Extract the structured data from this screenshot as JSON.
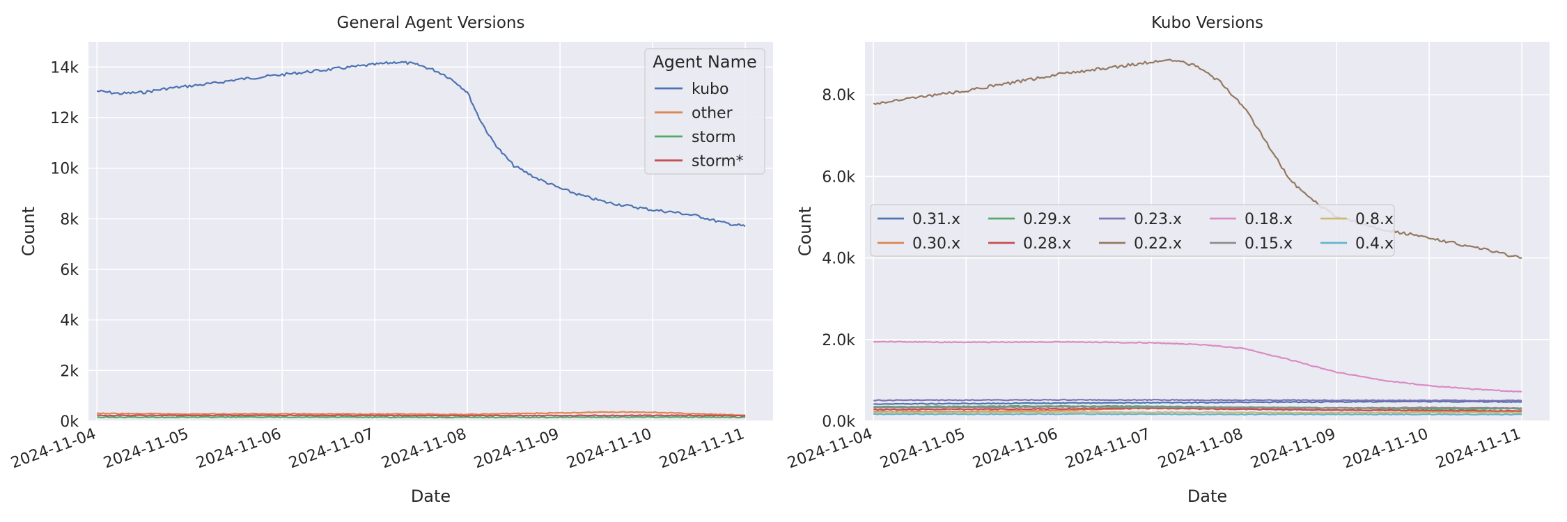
{
  "chart_data": [
    {
      "type": "line",
      "title": "General Agent Versions",
      "xlabel": "Date",
      "ylabel": "Count",
      "ylim": [
        0,
        15000
      ],
      "xlim": [
        "2024-11-03T21:48",
        "2024-11-11T07:12"
      ],
      "grid": true,
      "background": "#eaeaf2",
      "yticks": [
        0,
        2000,
        4000,
        6000,
        8000,
        10000,
        12000,
        14000
      ],
      "yticklabels": [
        "0k",
        "2k",
        "4k",
        "6k",
        "8k",
        "10k",
        "12k",
        "14k"
      ],
      "xticks": [
        "2024-11-04",
        "2024-11-05",
        "2024-11-06",
        "2024-11-07",
        "2024-11-08",
        "2024-11-09",
        "2024-11-10",
        "2024-11-11"
      ],
      "legend": {
        "title": "Agent Name",
        "placement": "top-right",
        "columns": 1
      },
      "series": [
        {
          "name": "kubo",
          "color": "#4c72b0",
          "x": [
            "2024-11-04",
            "2024-11-04T06:00",
            "2024-11-04T12:00",
            "2024-11-04T18:00",
            "2024-11-05",
            "2024-11-05T06:00",
            "2024-11-05T12:00",
            "2024-11-05T18:00",
            "2024-11-06",
            "2024-11-06T06:00",
            "2024-11-06T12:00",
            "2024-11-06T18:00",
            "2024-11-07",
            "2024-11-07T03:00",
            "2024-11-07T06:00",
            "2024-11-07T09:00",
            "2024-11-07T12:00",
            "2024-11-07T15:00",
            "2024-11-07T18:00",
            "2024-11-07T21:00",
            "2024-11-08",
            "2024-11-08T03:00",
            "2024-11-08T06:00",
            "2024-11-08T09:00",
            "2024-11-08T12:00",
            "2024-11-08T18:00",
            "2024-11-09",
            "2024-11-09T06:00",
            "2024-11-09T12:00",
            "2024-11-09T18:00",
            "2024-11-10",
            "2024-11-10T06:00",
            "2024-11-10T12:00",
            "2024-11-10T18:00",
            "2024-11-11"
          ],
          "y": [
            13050,
            12950,
            13000,
            13150,
            13250,
            13350,
            13500,
            13600,
            13700,
            13800,
            13900,
            14000,
            14100,
            14150,
            14200,
            14150,
            14050,
            13900,
            13700,
            13400,
            13000,
            12000,
            11200,
            10600,
            10100,
            9600,
            9200,
            8900,
            8650,
            8500,
            8350,
            8250,
            8100,
            7850,
            7700
          ]
        },
        {
          "name": "other",
          "color": "#dd8452",
          "x": [
            "2024-11-04",
            "2024-11-05",
            "2024-11-06",
            "2024-11-07",
            "2024-11-08",
            "2024-11-08T12:00",
            "2024-11-09",
            "2024-11-09T12:00",
            "2024-11-10",
            "2024-11-10T12:00",
            "2024-11-11"
          ],
          "y": [
            300,
            280,
            290,
            280,
            260,
            300,
            320,
            360,
            350,
            280,
            230
          ]
        },
        {
          "name": "storm",
          "color": "#55a868",
          "x": [
            "2024-11-04",
            "2024-11-05",
            "2024-11-06",
            "2024-11-07",
            "2024-11-08",
            "2024-11-09",
            "2024-11-10",
            "2024-11-11"
          ],
          "y": [
            150,
            155,
            160,
            150,
            145,
            150,
            160,
            150
          ]
        },
        {
          "name": "storm*",
          "color": "#c44e52",
          "x": [
            "2024-11-04",
            "2024-11-05",
            "2024-11-06",
            "2024-11-07",
            "2024-11-08",
            "2024-11-09",
            "2024-11-10",
            "2024-11-11"
          ],
          "y": [
            220,
            225,
            230,
            220,
            215,
            220,
            225,
            215
          ]
        }
      ]
    },
    {
      "type": "line",
      "title": "Kubo Versions",
      "xlabel": "Date",
      "ylabel": "Count",
      "ylim": [
        0,
        9300
      ],
      "xlim": [
        "2024-11-03T21:48",
        "2024-11-11T07:12"
      ],
      "grid": true,
      "background": "#eaeaf2",
      "yticks": [
        0,
        2000,
        4000,
        6000,
        8000
      ],
      "yticklabels": [
        "0.0k",
        "2.0k",
        "4.0k",
        "6.0k",
        "8.0k"
      ],
      "xticks": [
        "2024-11-04",
        "2024-11-05",
        "2024-11-06",
        "2024-11-07",
        "2024-11-08",
        "2024-11-09",
        "2024-11-10",
        "2024-11-11"
      ],
      "legend": {
        "title": "",
        "placement": "center-left",
        "columns": 5
      },
      "series": [
        {
          "name": "0.31.x",
          "color": "#4c72b0",
          "x": [
            "2024-11-04",
            "2024-11-05",
            "2024-11-06",
            "2024-11-07",
            "2024-11-08",
            "2024-11-09",
            "2024-11-10",
            "2024-11-11"
          ],
          "y": [
            420,
            430,
            440,
            450,
            460,
            470,
            480,
            470
          ]
        },
        {
          "name": "0.30.x",
          "color": "#dd8452",
          "x": [
            "2024-11-04",
            "2024-11-05",
            "2024-11-06",
            "2024-11-07",
            "2024-11-08",
            "2024-11-09",
            "2024-11-10",
            "2024-11-11"
          ],
          "y": [
            230,
            240,
            260,
            330,
            300,
            270,
            250,
            240
          ]
        },
        {
          "name": "0.29.x",
          "color": "#55a868",
          "x": [
            "2024-11-04",
            "2024-11-05",
            "2024-11-06",
            "2024-11-07",
            "2024-11-08",
            "2024-11-09",
            "2024-11-10",
            "2024-11-11"
          ],
          "y": [
            350,
            360,
            370,
            360,
            340,
            320,
            300,
            300
          ]
        },
        {
          "name": "0.28.x",
          "color": "#c44e52",
          "x": [
            "2024-11-04",
            "2024-11-05",
            "2024-11-06",
            "2024-11-07",
            "2024-11-08",
            "2024-11-09",
            "2024-11-10",
            "2024-11-11"
          ],
          "y": [
            280,
            290,
            300,
            310,
            290,
            270,
            260,
            250
          ]
        },
        {
          "name": "0.23.x",
          "color": "#8172b3",
          "x": [
            "2024-11-04",
            "2024-11-05",
            "2024-11-06",
            "2024-11-07",
            "2024-11-08",
            "2024-11-09",
            "2024-11-10",
            "2024-11-11"
          ],
          "y": [
            510,
            515,
            520,
            520,
            515,
            510,
            505,
            500
          ]
        },
        {
          "name": "0.22.x",
          "color": "#937860",
          "x": [
            "2024-11-04",
            "2024-11-04T12:00",
            "2024-11-05",
            "2024-11-05T12:00",
            "2024-11-06",
            "2024-11-06T12:00",
            "2024-11-07",
            "2024-11-07T06:00",
            "2024-11-07T12:00",
            "2024-11-07T18:00",
            "2024-11-08",
            "2024-11-08T06:00",
            "2024-11-08T12:00",
            "2024-11-08T18:00",
            "2024-11-09",
            "2024-11-09T12:00",
            "2024-11-10",
            "2024-11-10T12:00",
            "2024-11-11"
          ],
          "y": [
            7780,
            7950,
            8100,
            8300,
            8500,
            8650,
            8800,
            8850,
            8700,
            8300,
            7700,
            6800,
            5900,
            5400,
            5000,
            4700,
            4500,
            4250,
            4000
          ]
        },
        {
          "name": "0.18.x",
          "color": "#da8bc3",
          "x": [
            "2024-11-04",
            "2024-11-05",
            "2024-11-06",
            "2024-11-07",
            "2024-11-07T12:00",
            "2024-11-08",
            "2024-11-08T12:00",
            "2024-11-09",
            "2024-11-09T12:00",
            "2024-11-10",
            "2024-11-10T12:00",
            "2024-11-11"
          ],
          "y": [
            1950,
            1930,
            1940,
            1920,
            1880,
            1780,
            1500,
            1200,
            1000,
            870,
            780,
            720
          ]
        },
        {
          "name": "0.15.x",
          "color": "#8c8c8c",
          "x": [
            "2024-11-04",
            "2024-11-05",
            "2024-11-06",
            "2024-11-07",
            "2024-11-08",
            "2024-11-09",
            "2024-11-10",
            "2024-11-11"
          ],
          "y": [
            330,
            340,
            350,
            340,
            330,
            320,
            330,
            320
          ]
        },
        {
          "name": "0.8.x",
          "color": "#ccb974",
          "x": [
            "2024-11-04",
            "2024-11-05",
            "2024-11-06",
            "2024-11-07",
            "2024-11-08",
            "2024-11-09",
            "2024-11-10",
            "2024-11-11"
          ],
          "y": [
            210,
            215,
            220,
            215,
            210,
            205,
            210,
            205
          ]
        },
        {
          "name": "0.4.x",
          "color": "#64b5cd",
          "x": [
            "2024-11-04",
            "2024-11-05",
            "2024-11-06",
            "2024-11-07",
            "2024-11-08",
            "2024-11-09",
            "2024-11-10",
            "2024-11-11"
          ],
          "y": [
            170,
            170,
            175,
            170,
            165,
            165,
            165,
            160
          ]
        }
      ]
    }
  ]
}
